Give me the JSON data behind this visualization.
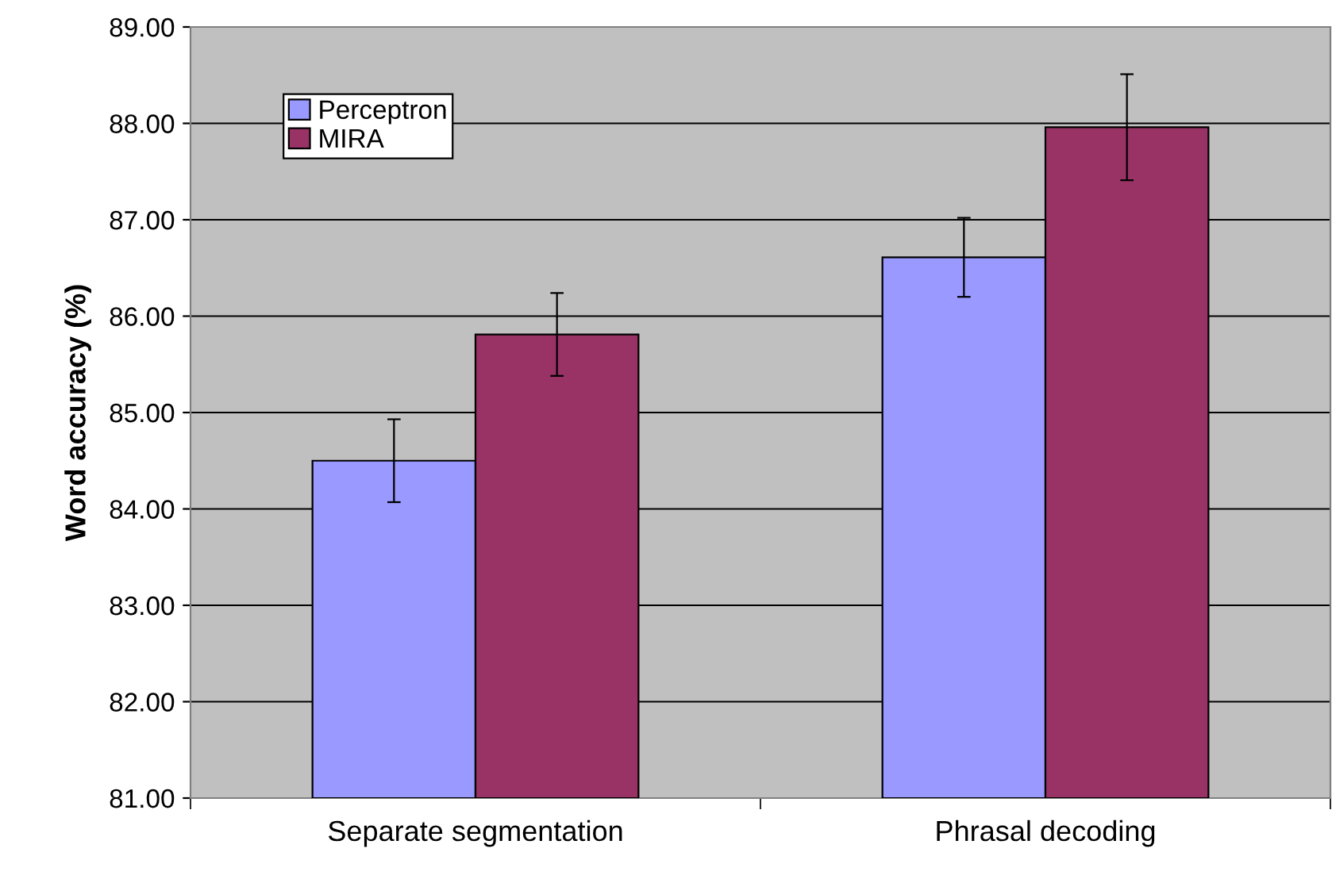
{
  "chart_data": {
    "type": "bar",
    "ylabel": "Word accuracy (%)",
    "categories": [
      "Separate segmentation",
      "Phrasal decoding"
    ],
    "series": [
      {
        "name": "Perceptron",
        "color": "#9999ff",
        "values": [
          84.5,
          86.61
        ],
        "errors": [
          0.43,
          0.41
        ]
      },
      {
        "name": "MIRA",
        "color": "#993366",
        "values": [
          85.81,
          87.96
        ],
        "errors": [
          0.43,
          0.55
        ]
      }
    ],
    "ylim": [
      81,
      89
    ],
    "yticks": [
      {
        "value": 81,
        "label": "81.00"
      },
      {
        "value": 82,
        "label": "82.00"
      },
      {
        "value": 83,
        "label": "83.00"
      },
      {
        "value": 84,
        "label": "84.00"
      },
      {
        "value": 85,
        "label": "85.00"
      },
      {
        "value": 86,
        "label": "86.00"
      },
      {
        "value": 87,
        "label": "87.00"
      },
      {
        "value": 88,
        "label": "88.00"
      },
      {
        "value": 89,
        "label": "89.00"
      }
    ],
    "grid": "y",
    "legend": "top left"
  }
}
